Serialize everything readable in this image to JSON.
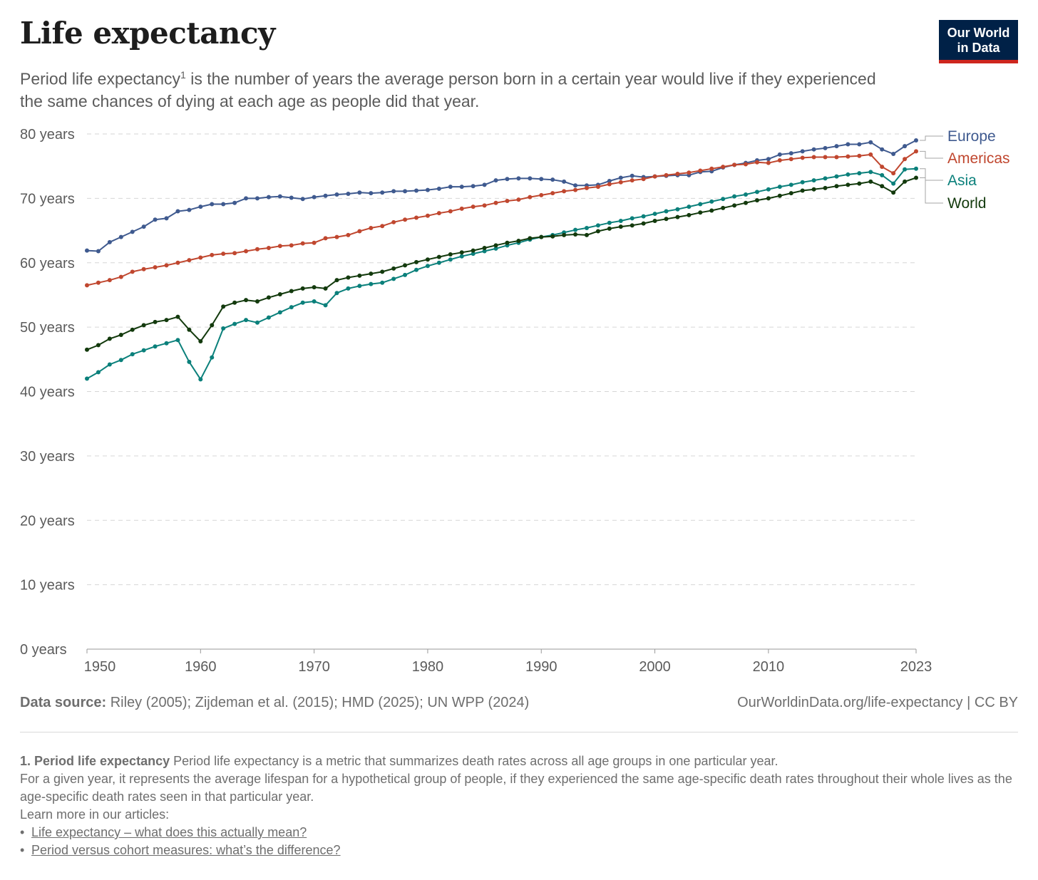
{
  "header": {
    "title": "Life expectancy",
    "subtitle_part1": "Period life expectancy",
    "subtitle_sup": "1",
    "subtitle_part2": " is the number of years the average person born in a certain year would live if they experienced the same chances of dying at each age as people did that year."
  },
  "logo": {
    "line1": "Our World",
    "line2": "in Data"
  },
  "colors": {
    "Europe": "#3f5a8f",
    "Americas": "#c0472f",
    "Asia": "#0b807b",
    "World": "#133a0d",
    "logo_bg": "#002147",
    "logo_accent": "#ce261e"
  },
  "chart_data": {
    "type": "line",
    "title": "Life expectancy",
    "xlabel": "",
    "ylabel": "",
    "xlim": [
      1950,
      2023
    ],
    "ylim": [
      0,
      80
    ],
    "y_ticks": [
      0,
      10,
      20,
      30,
      40,
      50,
      60,
      70,
      80
    ],
    "y_tick_labels": [
      "0 years",
      "10 years",
      "20 years",
      "30 years",
      "40 years",
      "50 years",
      "60 years",
      "70 years",
      "80 years"
    ],
    "x_ticks": [
      1950,
      1960,
      1970,
      1980,
      1990,
      2000,
      2010,
      2023
    ],
    "x_tick_labels": [
      "1950",
      "1960",
      "1970",
      "1980",
      "1990",
      "2000",
      "2010",
      "2023"
    ],
    "grid": "horizontal dashed",
    "legend": "right (end-of-line labels)",
    "x": [
      1950,
      1951,
      1952,
      1953,
      1954,
      1955,
      1956,
      1957,
      1958,
      1959,
      1960,
      1961,
      1962,
      1963,
      1964,
      1965,
      1966,
      1967,
      1968,
      1969,
      1970,
      1971,
      1972,
      1973,
      1974,
      1975,
      1976,
      1977,
      1978,
      1979,
      1980,
      1981,
      1982,
      1983,
      1984,
      1985,
      1986,
      1987,
      1988,
      1989,
      1990,
      1991,
      1992,
      1993,
      1994,
      1995,
      1996,
      1997,
      1998,
      1999,
      2000,
      2001,
      2002,
      2003,
      2004,
      2005,
      2006,
      2007,
      2008,
      2009,
      2010,
      2011,
      2012,
      2013,
      2014,
      2015,
      2016,
      2017,
      2018,
      2019,
      2020,
      2021,
      2022,
      2023
    ],
    "series": [
      {
        "name": "Europe",
        "values": [
          61.9,
          61.8,
          63.2,
          64.0,
          64.8,
          65.6,
          66.7,
          66.9,
          68.0,
          68.2,
          68.7,
          69.1,
          69.1,
          69.3,
          70.0,
          70.0,
          70.2,
          70.3,
          70.1,
          69.9,
          70.2,
          70.4,
          70.6,
          70.7,
          70.9,
          70.8,
          70.9,
          71.1,
          71.1,
          71.2,
          71.3,
          71.5,
          71.8,
          71.8,
          71.9,
          72.1,
          72.8,
          73.0,
          73.1,
          73.1,
          73.0,
          72.9,
          72.6,
          72.0,
          72.0,
          72.1,
          72.7,
          73.2,
          73.5,
          73.3,
          73.4,
          73.5,
          73.6,
          73.6,
          74.1,
          74.2,
          74.8,
          75.2,
          75.5,
          75.9,
          76.1,
          76.8,
          77.0,
          77.3,
          77.6,
          77.8,
          78.1,
          78.4,
          78.4,
          78.7,
          77.6,
          76.9,
          78.1,
          79.0
        ]
      },
      {
        "name": "Americas",
        "values": [
          56.5,
          56.9,
          57.3,
          57.8,
          58.6,
          59.0,
          59.3,
          59.6,
          60.0,
          60.4,
          60.8,
          61.2,
          61.4,
          61.5,
          61.8,
          62.1,
          62.3,
          62.6,
          62.7,
          63.0,
          63.1,
          63.8,
          64.0,
          64.3,
          64.9,
          65.4,
          65.7,
          66.3,
          66.7,
          67.0,
          67.3,
          67.7,
          68.0,
          68.4,
          68.7,
          68.9,
          69.3,
          69.6,
          69.8,
          70.2,
          70.5,
          70.8,
          71.1,
          71.3,
          71.6,
          71.8,
          72.2,
          72.5,
          72.8,
          73.0,
          73.4,
          73.6,
          73.8,
          74.0,
          74.3,
          74.6,
          74.9,
          75.2,
          75.3,
          75.6,
          75.5,
          75.9,
          76.1,
          76.3,
          76.4,
          76.4,
          76.4,
          76.5,
          76.6,
          76.8,
          74.9,
          73.9,
          76.1,
          77.3
        ]
      },
      {
        "name": "Asia",
        "values": [
          42.0,
          43.0,
          44.2,
          44.9,
          45.8,
          46.4,
          47.0,
          47.5,
          48.0,
          44.6,
          41.9,
          45.3,
          49.8,
          50.5,
          51.1,
          50.7,
          51.5,
          52.3,
          53.1,
          53.8,
          54.0,
          53.4,
          55.3,
          56.0,
          56.4,
          56.7,
          56.9,
          57.5,
          58.1,
          58.9,
          59.5,
          60.0,
          60.5,
          61.0,
          61.4,
          61.8,
          62.2,
          62.7,
          63.1,
          63.6,
          64.0,
          64.3,
          64.7,
          65.1,
          65.4,
          65.8,
          66.2,
          66.5,
          66.9,
          67.2,
          67.6,
          68.0,
          68.3,
          68.7,
          69.1,
          69.5,
          69.9,
          70.3,
          70.6,
          71.0,
          71.4,
          71.8,
          72.1,
          72.5,
          72.8,
          73.1,
          73.4,
          73.7,
          73.9,
          74.1,
          73.6,
          72.3,
          74.5,
          74.6
        ]
      },
      {
        "name": "World",
        "values": [
          46.5,
          47.2,
          48.2,
          48.8,
          49.6,
          50.3,
          50.8,
          51.1,
          51.6,
          49.6,
          47.8,
          50.3,
          53.2,
          53.8,
          54.2,
          54.0,
          54.6,
          55.1,
          55.6,
          56.0,
          56.2,
          56.0,
          57.3,
          57.7,
          58.0,
          58.3,
          58.6,
          59.1,
          59.6,
          60.1,
          60.5,
          60.9,
          61.3,
          61.6,
          61.9,
          62.3,
          62.7,
          63.1,
          63.4,
          63.8,
          64.0,
          64.1,
          64.3,
          64.4,
          64.3,
          64.9,
          65.3,
          65.6,
          65.8,
          66.1,
          66.5,
          66.8,
          67.1,
          67.4,
          67.8,
          68.1,
          68.5,
          68.9,
          69.3,
          69.7,
          70.0,
          70.4,
          70.8,
          71.2,
          71.4,
          71.6,
          71.9,
          72.1,
          72.3,
          72.6,
          71.9,
          70.9,
          72.6,
          73.2
        ]
      }
    ]
  },
  "source": {
    "label": "Data source:",
    "text": " Riley (2005); Zijdeman et al. (2015); HMD (2025); UN WPP (2024)",
    "right": "OurWorldinData.org/life-expectancy | CC BY"
  },
  "footnote": {
    "number_title": "1. Period life expectancy",
    "text1": " Period life expectancy is a metric that summarizes death rates across all age groups in one particular year.",
    "text2": "For a given year, it represents the average lifespan for a hypothetical group of people, if they experienced the same age-specific death rates throughout their whole lives as the age-specific death rates seen in that particular year.",
    "learn_more": "Learn more in our articles:",
    "links": [
      "Life expectancy – what does this actually mean?",
      "Period versus cohort measures: what’s the difference?"
    ]
  }
}
